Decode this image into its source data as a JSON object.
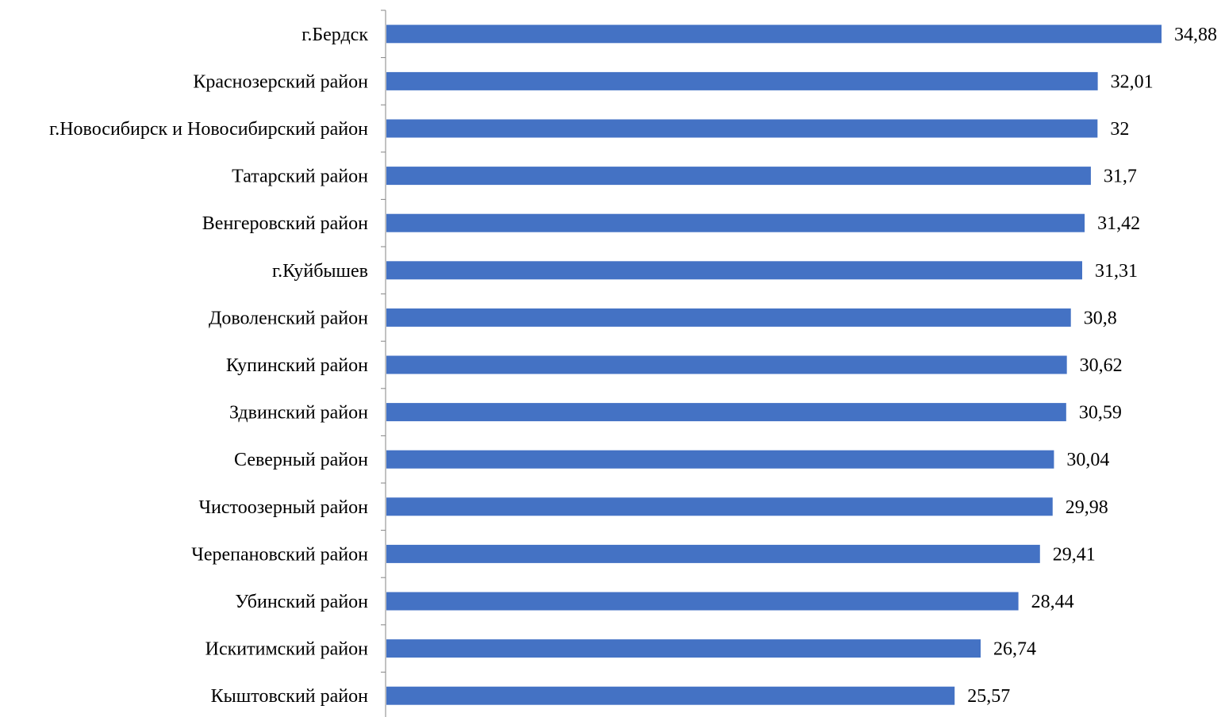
{
  "chart_data": {
    "type": "bar",
    "orientation": "horizontal",
    "title": "",
    "xlabel": "",
    "ylabel": "",
    "categories": [
      "г.Бердск",
      "Краснозерский район",
      "г.Новосибирск и Новосибирский район",
      "Татарский район",
      "Венгеровский район",
      "г.Куйбышев",
      "Доволенский район",
      "Купинский район",
      "Здвинский район",
      "Северный район",
      "Чистоозерный район",
      "Черепановский район",
      "Убинский район",
      "Искитимский район",
      "Кыштовский район"
    ],
    "values": [
      34.88,
      32.01,
      32,
      31.7,
      31.42,
      31.31,
      30.8,
      30.62,
      30.59,
      30.04,
      29.98,
      29.41,
      28.44,
      26.74,
      25.57
    ],
    "value_labels": [
      "34,88",
      "32,01",
      "32",
      "31,7",
      "31,42",
      "31,31",
      "30,8",
      "30,62",
      "30,59",
      "30,04",
      "29,98",
      "29,41",
      "28,44",
      "26,74",
      "25,57"
    ],
    "xlim": [
      0,
      35
    ],
    "bar_color": "#4472C4",
    "grid": false,
    "legend": "none"
  }
}
